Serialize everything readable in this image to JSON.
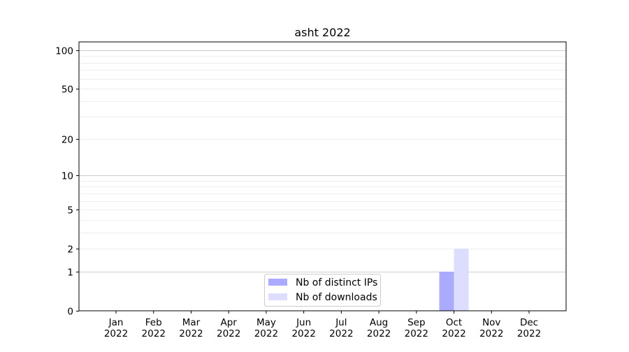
{
  "chart_data": {
    "type": "bar",
    "title": "asht 2022",
    "xlabel": "",
    "ylabel": "",
    "categories": [
      "Jan\n2022",
      "Feb\n2022",
      "Mar\n2022",
      "Apr\n2022",
      "May\n2022",
      "Jun\n2022",
      "Jul\n2022",
      "Aug\n2022",
      "Sep\n2022",
      "Oct\n2022",
      "Nov\n2022",
      "Dec\n2022"
    ],
    "series": [
      {
        "name": "Nb of distinct IPs",
        "color": "#aaaaff",
        "values": [
          0,
          0,
          0,
          0,
          0,
          0,
          0,
          0,
          0,
          1,
          0,
          0
        ]
      },
      {
        "name": "Nb of downloads",
        "color": "#ddddff",
        "values": [
          0,
          0,
          0,
          0,
          0,
          0,
          0,
          0,
          0,
          2,
          0,
          0
        ]
      }
    ],
    "yscale": "log10(1+y)",
    "ylim": [
      0,
      116
    ],
    "yticks": [
      0,
      1,
      2,
      5,
      10,
      20,
      50,
      100
    ],
    "grid": true,
    "legend": "lower-center"
  }
}
